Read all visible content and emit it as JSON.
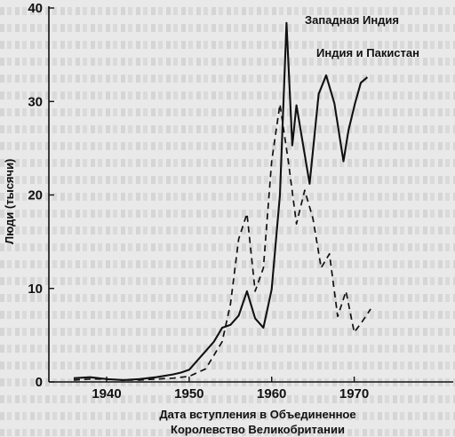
{
  "chart_data": {
    "type": "line",
    "xlabel": [
      "Дата вступления в Объединенное",
      "Королевство Великобритании"
    ],
    "ylabel": "Люди (тысячи)",
    "xlim": [
      1933,
      1982
    ],
    "ylim": [
      0,
      40
    ],
    "x_ticks": [
      1940,
      1950,
      1960,
      1970
    ],
    "y_ticks": [
      0,
      10,
      20,
      30,
      40
    ],
    "grid": false,
    "series": [
      {
        "name": "Западная Индия",
        "style": "solid",
        "points": [
          [
            1936,
            0.4
          ],
          [
            1938,
            0.5
          ],
          [
            1940,
            0.3
          ],
          [
            1942,
            0.2
          ],
          [
            1944,
            0.3
          ],
          [
            1946,
            0.5
          ],
          [
            1948,
            0.8
          ],
          [
            1949,
            1.0
          ],
          [
            1950,
            1.3
          ],
          [
            1951,
            2.3
          ],
          [
            1952,
            3.3
          ],
          [
            1953,
            4.3
          ],
          [
            1954,
            5.8
          ],
          [
            1955,
            6.1
          ],
          [
            1956,
            7.1
          ],
          [
            1957,
            9.7
          ],
          [
            1958,
            6.8
          ],
          [
            1959,
            5.8
          ],
          [
            1960,
            9.9
          ],
          [
            1961,
            20.0
          ],
          [
            1961.8,
            38.4
          ],
          [
            1962.5,
            25.3
          ],
          [
            1963,
            29.6
          ],
          [
            1964.6,
            21.2
          ],
          [
            1965.7,
            30.8
          ],
          [
            1966.6,
            32.8
          ],
          [
            1967.6,
            29.8
          ],
          [
            1968.7,
            23.6
          ],
          [
            1969.3,
            26.9
          ],
          [
            1970.1,
            29.8
          ],
          [
            1970.8,
            32.0
          ],
          [
            1971.6,
            32.6
          ]
        ]
      },
      {
        "name": "Индия и Пакистан",
        "style": "dashed",
        "points": [
          [
            1936,
            0.2
          ],
          [
            1938,
            0.3
          ],
          [
            1940,
            0.3
          ],
          [
            1942,
            0.2
          ],
          [
            1944,
            0.2
          ],
          [
            1946,
            0.3
          ],
          [
            1948,
            0.4
          ],
          [
            1950,
            0.6
          ],
          [
            1952,
            1.4
          ],
          [
            1954,
            4.3
          ],
          [
            1955,
            8.3
          ],
          [
            1956,
            15.3
          ],
          [
            1957,
            18.0
          ],
          [
            1958,
            9.7
          ],
          [
            1959,
            12.2
          ],
          [
            1960,
            23.6
          ],
          [
            1961,
            29.7
          ],
          [
            1962,
            23.7
          ],
          [
            1963,
            16.9
          ],
          [
            1964,
            20.5
          ],
          [
            1965,
            17.5
          ],
          [
            1966,
            12.2
          ],
          [
            1967,
            13.7
          ],
          [
            1968,
            7.0
          ],
          [
            1969,
            9.7
          ],
          [
            1970,
            5.3
          ],
          [
            1971,
            6.5
          ],
          [
            1972,
            7.8
          ]
        ]
      }
    ]
  },
  "colors": {
    "ink": "#111111",
    "paper": "#e9e9e9"
  }
}
